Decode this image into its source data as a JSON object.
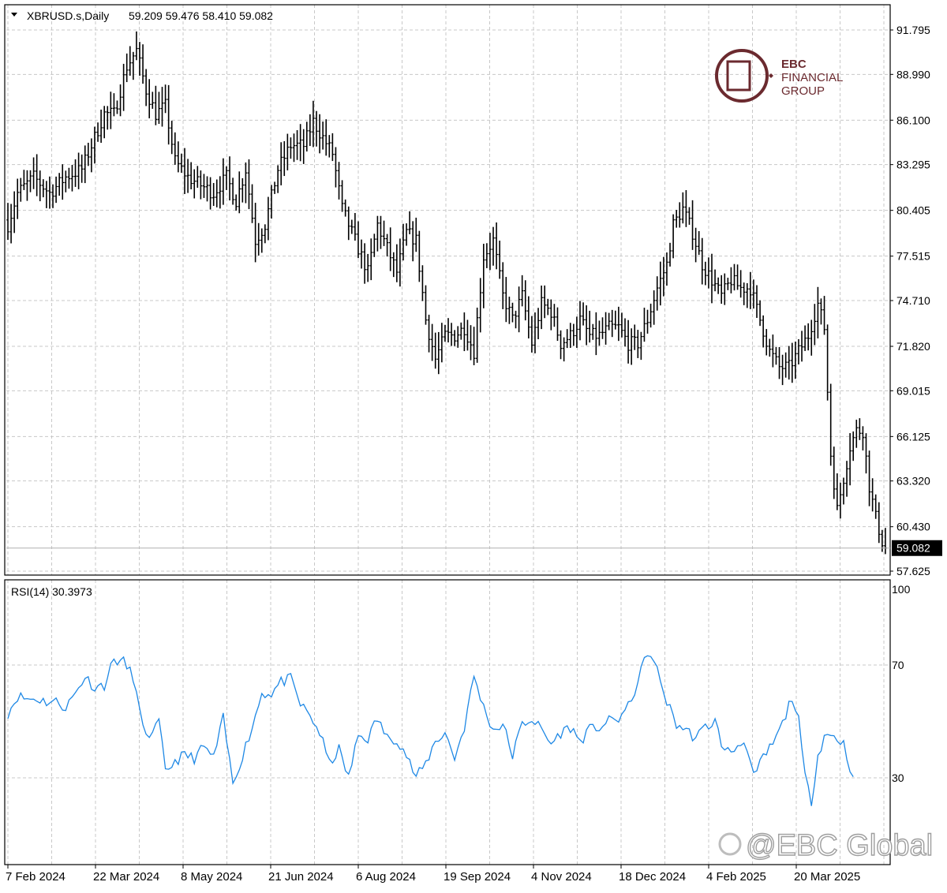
{
  "header": {
    "symbol": "XBRUSD.s,Daily",
    "ohlc": "59.209 59.476 58.410 59.082",
    "indicator": "RSI(14) 30.3973"
  },
  "logo": {
    "line1": "EBC",
    "line2": "FINANCIAL",
    "line3": "GROUP",
    "color": "#6b2a2f"
  },
  "watermark": "@EBC Global",
  "colors": {
    "bars": "#000000",
    "rsi": "#1e88e5",
    "grid": "#c8c8c8",
    "axis": "#000000",
    "price_line": "#b0b0b0",
    "price_box": "#000000",
    "price_box_text": "#ffffff"
  },
  "chart_data": [
    {
      "type": "ohlc",
      "series_name": "XBRUSD.s,Daily",
      "ylim": [
        57.625,
        92.5
      ],
      "y_ticks": [
        "91.795",
        "88.990",
        "86.100",
        "83.295",
        "80.405",
        "77.515",
        "74.710",
        "71.820",
        "69.015",
        "66.125",
        "63.320",
        "60.430",
        "57.625"
      ],
      "x_labels": [
        "7 Feb 2024",
        "22 Mar 2024",
        "8 May 2024",
        "21 Jun 2024",
        "6 Aug 2024",
        "19 Sep 2024",
        "4 Nov 2024",
        "18 Dec 2024",
        "4 Feb 2025",
        "20 Mar 2025"
      ],
      "current_price": "59.082",
      "grid": true,
      "close_anchors": [
        [
          0,
          79.5
        ],
        [
          3,
          81.5
        ],
        [
          8,
          82.5
        ],
        [
          13,
          81.5
        ],
        [
          18,
          82.5
        ],
        [
          23,
          83.0
        ],
        [
          27,
          85.0
        ],
        [
          30,
          86.5
        ],
        [
          33,
          86.5
        ],
        [
          37,
          89.5
        ],
        [
          40,
          90.5
        ],
        [
          43,
          88.0
        ],
        [
          46,
          86.5
        ],
        [
          49,
          87.0
        ],
        [
          52,
          83.5
        ],
        [
          56,
          82.5
        ],
        [
          60,
          82.0
        ],
        [
          64,
          81.5
        ],
        [
          68,
          82.5
        ],
        [
          71,
          81.0
        ],
        [
          74,
          83.0
        ],
        [
          77,
          78.5
        ],
        [
          80,
          79.5
        ],
        [
          84,
          83.0
        ],
        [
          88,
          84.5
        ],
        [
          92,
          84.5
        ],
        [
          95,
          86.0
        ],
        [
          98,
          85.0
        ],
        [
          101,
          84.0
        ],
        [
          104,
          80.5
        ],
        [
          108,
          78.5
        ],
        [
          112,
          76.5
        ],
        [
          115,
          79.5
        ],
        [
          118,
          78.0
        ],
        [
          121,
          76.5
        ],
        [
          124,
          79.0
        ],
        [
          127,
          78.5
        ],
        [
          130,
          73.5
        ],
        [
          133,
          71.0
        ],
        [
          136,
          72.5
        ],
        [
          139,
          72.5
        ],
        [
          142,
          73.0
        ],
        [
          145,
          71.5
        ],
        [
          148,
          77.5
        ],
        [
          151,
          78.5
        ],
        [
          154,
          75.0
        ],
        [
          157,
          73.5
        ],
        [
          160,
          75.0
        ],
        [
          163,
          72.0
        ],
        [
          166,
          74.5
        ],
        [
          169,
          74.0
        ],
        [
          172,
          72.0
        ],
        [
          175,
          72.5
        ],
        [
          178,
          73.5
        ],
        [
          181,
          72.5
        ],
        [
          184,
          72.5
        ],
        [
          187,
          73.0
        ],
        [
          190,
          73.0
        ],
        [
          193,
          72.0
        ],
        [
          196,
          72.0
        ],
        [
          199,
          73.5
        ],
        [
          202,
          75.5
        ],
        [
          205,
          77.0
        ],
        [
          207,
          79.5
        ],
        [
          210,
          80.5
        ],
        [
          213,
          79.0
        ],
        [
          216,
          77.0
        ],
        [
          219,
          76.0
        ],
        [
          222,
          75.0
        ],
        [
          225,
          76.0
        ],
        [
          228,
          75.5
        ],
        [
          231,
          75.5
        ],
        [
          234,
          73.5
        ],
        [
          237,
          71.5
        ],
        [
          240,
          70.5
        ],
        [
          243,
          70.5
        ],
        [
          246,
          71.5
        ],
        [
          249,
          72.5
        ],
        [
          252,
          74.5
        ],
        [
          254,
          73.0
        ],
        [
          256,
          65.0
        ],
        [
          258,
          61.5
        ],
        [
          260,
          63.5
        ],
        [
          262,
          65.5
        ],
        [
          264,
          66.5
        ],
        [
          266,
          66.5
        ],
        [
          268,
          63.0
        ],
        [
          270,
          61.0
        ],
        [
          272,
          59.5
        ],
        [
          273,
          59.08
        ]
      ]
    },
    {
      "type": "line",
      "series_name": "RSI(14)",
      "ylim": [
        0,
        100
      ],
      "y_ticks": [
        "100",
        "70",
        "30"
      ],
      "current_value": "30.3973",
      "rsi_anchors": [
        [
          0,
          53
        ],
        [
          3,
          59
        ],
        [
          6,
          58
        ],
        [
          9,
          58
        ],
        [
          12,
          57
        ],
        [
          15,
          57
        ],
        [
          18,
          55
        ],
        [
          21,
          60
        ],
        [
          24,
          66
        ],
        [
          27,
          62
        ],
        [
          30,
          63
        ],
        [
          33,
          72
        ],
        [
          36,
          71
        ],
        [
          39,
          66
        ],
        [
          42,
          47
        ],
        [
          45,
          45
        ],
        [
          47,
          50
        ],
        [
          49,
          32
        ],
        [
          52,
          36
        ],
        [
          55,
          38
        ],
        [
          58,
          37
        ],
        [
          61,
          41
        ],
        [
          64,
          37
        ],
        [
          67,
          51
        ],
        [
          70,
          28
        ],
        [
          73,
          38
        ],
        [
          76,
          48
        ],
        [
          79,
          60
        ],
        [
          82,
          60
        ],
        [
          85,
          64
        ],
        [
          88,
          65
        ],
        [
          91,
          56
        ],
        [
          94,
          52
        ],
        [
          97,
          46
        ],
        [
          100,
          35
        ],
        [
          103,
          40
        ],
        [
          106,
          30
        ],
        [
          109,
          45
        ],
        [
          112,
          44
        ],
        [
          115,
          51
        ],
        [
          118,
          44
        ],
        [
          121,
          44
        ],
        [
          124,
          38
        ],
        [
          127,
          30
        ],
        [
          130,
          35
        ],
        [
          133,
          43
        ],
        [
          136,
          46
        ],
        [
          139,
          37
        ],
        [
          142,
          48
        ],
        [
          145,
          66
        ],
        [
          148,
          55
        ],
        [
          151,
          47
        ],
        [
          154,
          49
        ],
        [
          157,
          38
        ],
        [
          160,
          49
        ],
        [
          163,
          51
        ],
        [
          166,
          47
        ],
        [
          169,
          42
        ],
        [
          172,
          46
        ],
        [
          175,
          48
        ],
        [
          178,
          43
        ],
        [
          181,
          47
        ],
        [
          184,
          48
        ],
        [
          187,
          50
        ],
        [
          190,
          51
        ],
        [
          193,
          55
        ],
        [
          196,
          64
        ],
        [
          199,
          75
        ],
        [
          202,
          68
        ],
        [
          205,
          57
        ],
        [
          208,
          49
        ],
        [
          211,
          47
        ],
        [
          214,
          44
        ],
        [
          217,
          48
        ],
        [
          220,
          50
        ],
        [
          223,
          39
        ],
        [
          226,
          40
        ],
        [
          229,
          44
        ],
        [
          232,
          30
        ],
        [
          235,
          37
        ],
        [
          238,
          42
        ],
        [
          241,
          49
        ],
        [
          244,
          59
        ],
        [
          246,
          50
        ],
        [
          248,
          30
        ],
        [
          250,
          22
        ],
        [
          252,
          38
        ],
        [
          254,
          45
        ],
        [
          257,
          45
        ],
        [
          260,
          42
        ],
        [
          262,
          34
        ],
        [
          263,
          30.4
        ]
      ]
    }
  ]
}
